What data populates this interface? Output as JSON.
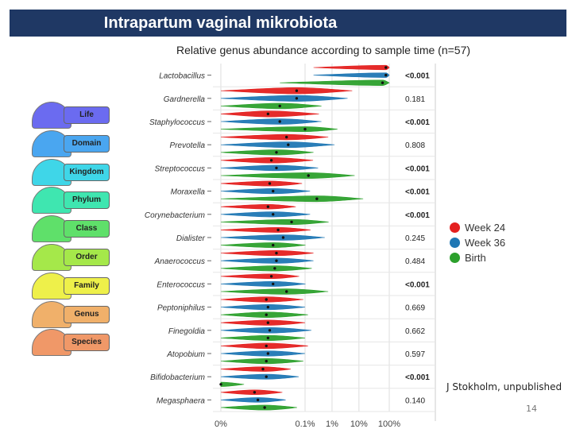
{
  "slide": {
    "title": "Intrapartum vaginal mikrobiota",
    "credit": "J Stokholm, unpublished",
    "page_number": "14"
  },
  "pyramid": {
    "levels": [
      {
        "label": "Life",
        "color": "#6b6bf0"
      },
      {
        "label": "Domain",
        "color": "#4aa6f0"
      },
      {
        "label": "Kingdom",
        "color": "#3fd6e8"
      },
      {
        "label": "Phylum",
        "color": "#3fe6b0"
      },
      {
        "label": "Class",
        "color": "#5fe06a"
      },
      {
        "label": "Order",
        "color": "#a5e84a"
      },
      {
        "label": "Family",
        "color": "#eef04a"
      },
      {
        "label": "Genus",
        "color": "#f0b06a"
      },
      {
        "label": "Species",
        "color": "#f09868"
      }
    ]
  },
  "legend": {
    "items": [
      {
        "label": "Week 24",
        "color": "#e4201f"
      },
      {
        "label": "Week 36",
        "color": "#1f77b4"
      },
      {
        "label": "Birth",
        "color": "#2ca02c"
      }
    ]
  },
  "chart_data": {
    "type": "violin",
    "title": "Relative genus abundance according to sample time (n=57)",
    "xlabel": "",
    "ylabel": "",
    "x_scale": "pseudo-log",
    "x_ticks": [
      "0%",
      "0.1%",
      "1%",
      "10%",
      "100%"
    ],
    "series_names": [
      "Week 24",
      "Week 36",
      "Birth"
    ],
    "series_colors": [
      "#e4201f",
      "#1f77b4",
      "#2ca02c"
    ],
    "genera": [
      {
        "name": "Lactobacillus",
        "p": "<0.001",
        "significant": true,
        "medians": [
          0.98,
          0.98,
          0.96
        ],
        "mins": [
          0.55,
          0.55,
          0.35
        ],
        "widths": [
          0.25,
          0.3,
          0.45
        ]
      },
      {
        "name": "Gardnerella",
        "p": "0.181",
        "significant": false,
        "medians": [
          0.45,
          0.45,
          0.35
        ],
        "mins": [
          0.0,
          0.0,
          0.0
        ],
        "widths": [
          0.6,
          0.55,
          0.45
        ]
      },
      {
        "name": "Staphylococcus",
        "p": "<0.001",
        "significant": true,
        "medians": [
          0.28,
          0.35,
          0.5
        ],
        "mins": [
          0.0,
          0.0,
          0.0
        ],
        "widths": [
          0.55,
          0.45,
          0.35
        ]
      },
      {
        "name": "Prevotella",
        "p": "0.808",
        "significant": false,
        "medians": [
          0.39,
          0.4,
          0.33
        ],
        "mins": [
          0.0,
          0.0,
          0.0
        ],
        "widths": [
          0.45,
          0.5,
          0.4
        ]
      },
      {
        "name": "Streptococcus",
        "p": "<0.001",
        "significant": true,
        "medians": [
          0.3,
          0.33,
          0.52
        ],
        "mins": [
          0.0,
          0.0,
          0.0
        ],
        "widths": [
          0.45,
          0.45,
          0.5
        ]
      },
      {
        "name": "Moraxella",
        "p": "<0.001",
        "significant": true,
        "medians": [
          0.29,
          0.31,
          0.57
        ],
        "mins": [
          0.0,
          0.0,
          0.0
        ],
        "widths": [
          0.35,
          0.4,
          0.5
        ]
      },
      {
        "name": "Corynebacterium",
        "p": "<0.001",
        "significant": true,
        "medians": [
          0.28,
          0.31,
          0.42
        ],
        "mins": [
          0.0,
          0.0,
          0.0
        ],
        "widths": [
          0.3,
          0.4,
          0.4
        ]
      },
      {
        "name": "Dialister",
        "p": "0.245",
        "significant": false,
        "medians": [
          0.34,
          0.37,
          0.31
        ],
        "mins": [
          0.0,
          0.0,
          0.0
        ],
        "widths": [
          0.35,
          0.45,
          0.35
        ]
      },
      {
        "name": "Anaerococcus",
        "p": "0.484",
        "significant": false,
        "medians": [
          0.33,
          0.33,
          0.32
        ],
        "mins": [
          0.0,
          0.0,
          0.0
        ],
        "widths": [
          0.4,
          0.4,
          0.4
        ]
      },
      {
        "name": "Enterococcus",
        "p": "<0.001",
        "significant": true,
        "medians": [
          0.3,
          0.31,
          0.39
        ],
        "mins": [
          0.0,
          0.0,
          0.0
        ],
        "widths": [
          0.3,
          0.35,
          0.45
        ]
      },
      {
        "name": "Peptoniphilus",
        "p": "0.669",
        "significant": false,
        "medians": [
          0.27,
          0.28,
          0.27
        ],
        "mins": [
          0.0,
          0.0,
          0.0
        ],
        "widths": [
          0.4,
          0.4,
          0.45
        ]
      },
      {
        "name": "Finegoldia",
        "p": "0.662",
        "significant": false,
        "medians": [
          0.28,
          0.29,
          0.28
        ],
        "mins": [
          0.0,
          0.0,
          0.0
        ],
        "widths": [
          0.4,
          0.45,
          0.4
        ]
      },
      {
        "name": "Atopobium",
        "p": "0.597",
        "significant": false,
        "medians": [
          0.27,
          0.28,
          0.27
        ],
        "mins": [
          0.0,
          0.0,
          0.0
        ],
        "widths": [
          0.45,
          0.4,
          0.4
        ]
      },
      {
        "name": "Bifidobacterium",
        "p": "<0.001",
        "significant": true,
        "medians": [
          0.25,
          0.27,
          0.0
        ],
        "mins": [
          0.0,
          0.0,
          0.0
        ],
        "widths": [
          0.3,
          0.35,
          0.25
        ]
      },
      {
        "name": "Megasphaera",
        "p": "0.140",
        "significant": false,
        "medians": [
          0.2,
          0.22,
          0.26
        ],
        "mins": [
          0.0,
          0.0,
          0.0
        ],
        "widths": [
          0.3,
          0.3,
          0.35
        ]
      }
    ]
  }
}
